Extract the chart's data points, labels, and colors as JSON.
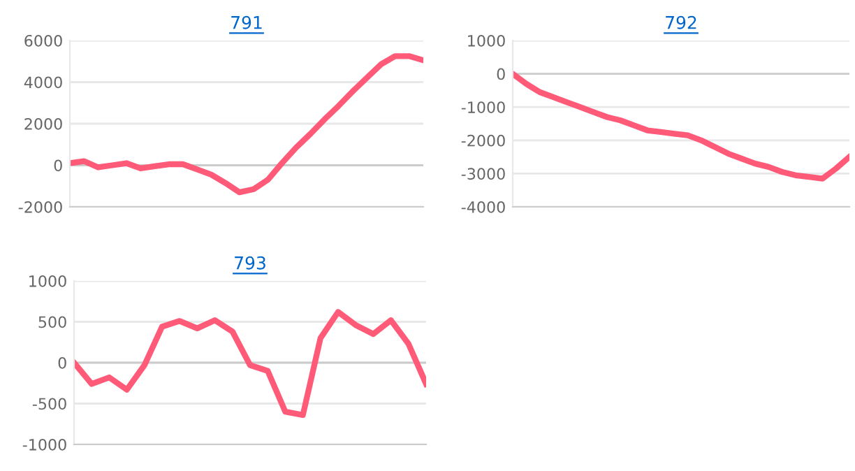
{
  "chart_data": [
    {
      "type": "line",
      "title": "791",
      "categories": [
        null,
        null,
        null,
        null,
        null,
        null,
        null,
        null,
        null,
        null,
        null,
        null,
        null,
        null,
        null,
        null,
        null,
        null,
        null,
        null,
        null,
        null,
        null,
        null,
        null,
        null
      ],
      "tick_labels": "y",
      "ylim": [
        -2000,
        6000
      ],
      "yticks": [
        -2000,
        0,
        2000,
        4000,
        6000
      ],
      "grid": "y",
      "series": [
        {
          "color": "#ff5a78",
          "values": [
            100,
            200,
            -100,
            0,
            100,
            -150,
            -50,
            50,
            50,
            -200,
            -450,
            -850,
            -1300,
            -1150,
            -700,
            100,
            850,
            1500,
            2200,
            2850,
            3550,
            4200,
            4850,
            5250,
            5250,
            5050
          ]
        }
      ]
    },
    {
      "type": "line",
      "title": "792",
      "categories": [
        null,
        null,
        null,
        null,
        null,
        null,
        null,
        null,
        null,
        null,
        null,
        null,
        null,
        null,
        null,
        null,
        null,
        null,
        null,
        null,
        null,
        null,
        null,
        null,
        null,
        null
      ],
      "tick_labels": "y",
      "ylim": [
        -4000,
        1000
      ],
      "yticks": [
        -4000,
        -3000,
        -2000,
        -1000,
        0,
        1000
      ],
      "grid": "y",
      "series": [
        {
          "color": "#ff5a78",
          "values": [
            0,
            -300,
            -550,
            -700,
            -850,
            -1000,
            -1150,
            -1300,
            -1400,
            -1550,
            -1700,
            -1750,
            -1800,
            -1850,
            -2000,
            -2200,
            -2400,
            -2550,
            -2700,
            -2800,
            -2950,
            -3050,
            -3100,
            -3150,
            -2850,
            -2500
          ]
        }
      ]
    },
    {
      "type": "line",
      "title": "793",
      "categories": [
        null,
        null,
        null,
        null,
        null,
        null,
        null,
        null,
        null,
        null,
        null,
        null,
        null,
        null,
        null,
        null,
        null,
        null,
        null,
        null,
        null
      ],
      "tick_labels": "y",
      "ylim": [
        -1000,
        1000
      ],
      "yticks": [
        -1000,
        -500,
        0,
        500,
        1000
      ],
      "grid": "y",
      "series": [
        {
          "color": "#ff5a78",
          "values": [
            0,
            -260,
            -180,
            -330,
            -30,
            440,
            510,
            420,
            520,
            380,
            -30,
            -100,
            -600,
            -640,
            300,
            620,
            460,
            350,
            520,
            230,
            -260
          ]
        }
      ]
    }
  ]
}
